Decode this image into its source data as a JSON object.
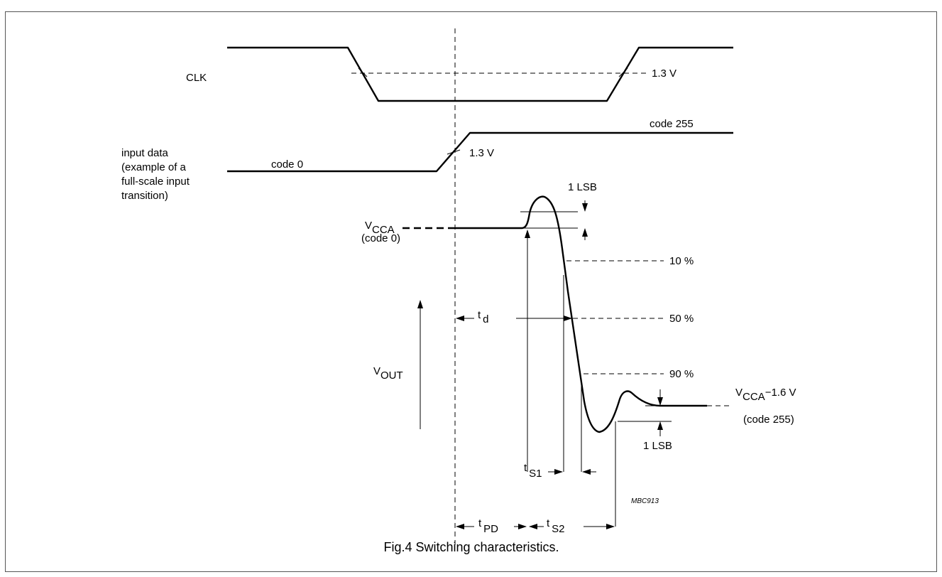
{
  "diagram": {
    "clk_label": "CLK",
    "clk_threshold": "1.3 V",
    "input_label": [
      "input data",
      "(example of a",
      "full-scale input",
      "transition)"
    ],
    "code0_label": "code 0",
    "code255_label": "code 255",
    "input_threshold": "1.3 V",
    "vcca": {
      "main": "V",
      "sub": "CCA"
    },
    "vcca_code": "(code 0)",
    "lsb_top": "1 LSB",
    "lsb_bottom": "1 LSB",
    "pct10": "10 %",
    "pct50": "50 %",
    "pct90": "90 %",
    "vout": {
      "main": "V",
      "sub": "OUT"
    },
    "td": {
      "main": "t",
      "sub": "d"
    },
    "ts1": {
      "main": "t",
      "sub": "S1"
    },
    "ts2": {
      "main": "t",
      "sub": "S2"
    },
    "tpd": {
      "main": "t",
      "sub": "PD"
    },
    "vcca_final": {
      "main": "V",
      "sub": "CCA",
      "suffix": "−1.6 V"
    },
    "vcca_final_code": "(code 255)",
    "figure_code": "MBC913"
  },
  "caption": "Fig.4  Switching characteristics."
}
